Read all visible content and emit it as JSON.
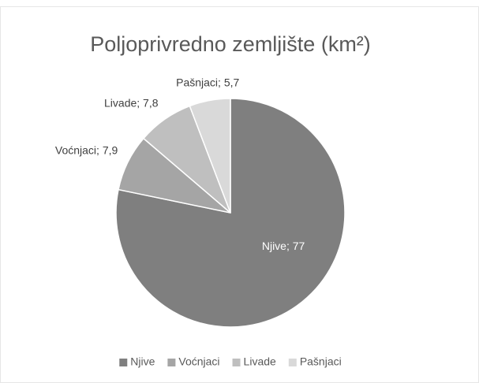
{
  "chart_data": {
    "type": "pie",
    "title": "Poljoprivredno zemljište (km²)",
    "categories": [
      "Njive",
      "Voćnjaci",
      "Livade",
      "Pašnjaci"
    ],
    "values": [
      77,
      7.9,
      7.8,
      5.7
    ],
    "value_labels": [
      "Njive; 77",
      "Voćnjaci; 7,9",
      "Livade; 7,8",
      "Pašnjaci; 5,7"
    ],
    "colors": [
      "#7f7f7f",
      "#a5a5a5",
      "#bfbfbf",
      "#d9d9d9"
    ],
    "legend": "bottom"
  }
}
